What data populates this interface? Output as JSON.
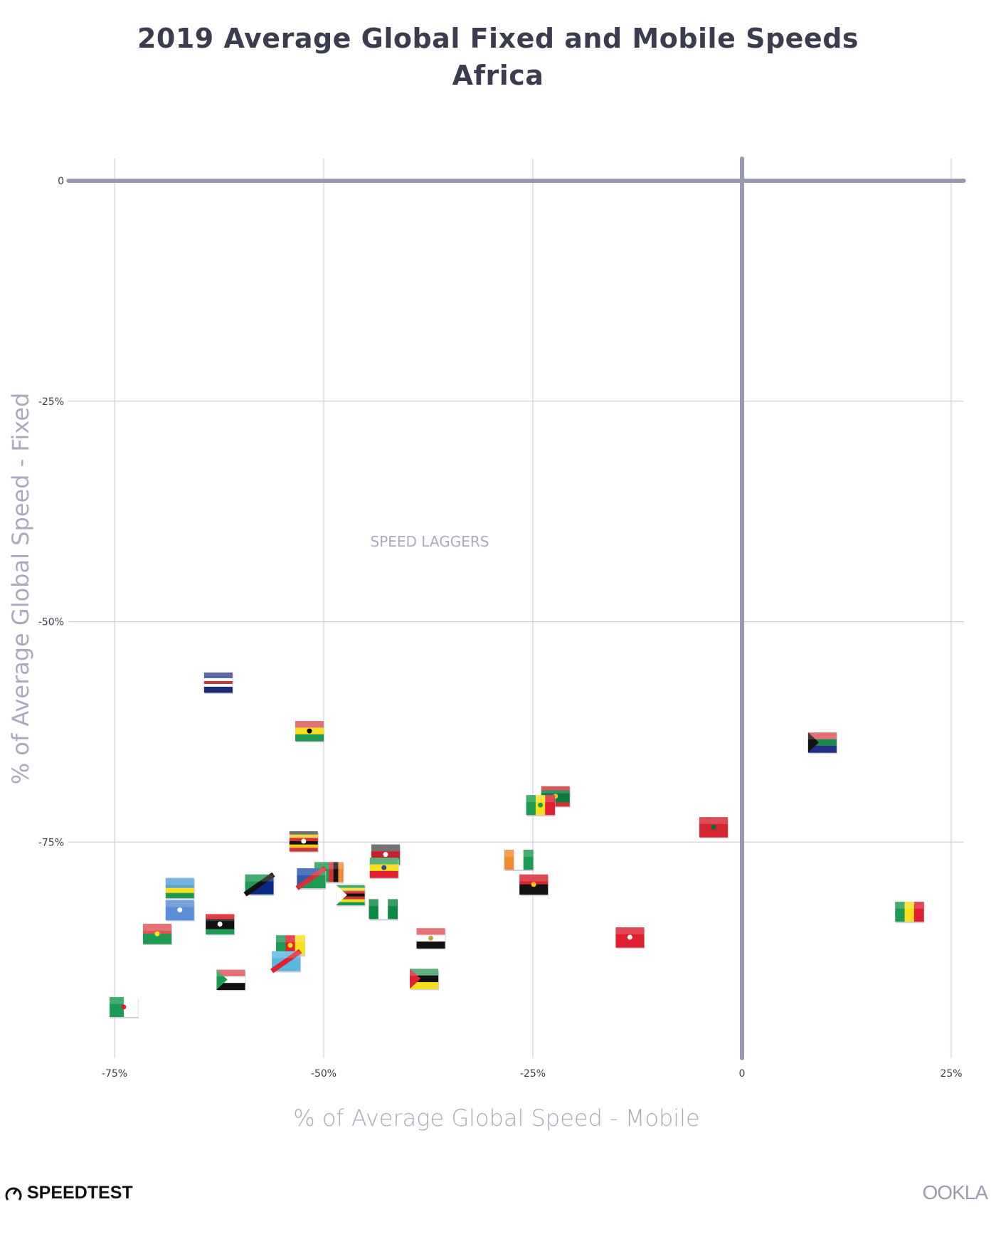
{
  "chart_data": {
    "type": "scatter",
    "title": "2019 Average Global Fixed and Mobile Speeds",
    "subtitle": "Africa",
    "xlabel": "% of Average Global Speed - Mobile",
    "ylabel": "% of Average Global Speed - Fixed",
    "xlim": [
      -80.5,
      26.5
    ],
    "ylim": [
      -99.5,
      2.5
    ],
    "x_ticks": [
      {
        "v": -75,
        "label": "-75%"
      },
      {
        "v": -50,
        "label": "-50%"
      },
      {
        "v": -25,
        "label": "-25%"
      },
      {
        "v": 0,
        "label": "0"
      },
      {
        "v": 25,
        "label": "25%"
      }
    ],
    "y_ticks": [
      {
        "v": 0,
        "label": "0"
      },
      {
        "v": -25,
        "label": "-25%"
      },
      {
        "v": -50,
        "label": "-50%"
      },
      {
        "v": -75,
        "label": "-75%"
      }
    ],
    "grid": true,
    "annotation": "SPEED LAGGERS",
    "colors": {
      "axis_zero": "#9899b0",
      "grid": "#c6c6d4",
      "label": "#a9aabd",
      "title": "#3b3c4e"
    },
    "points": [
      {
        "country": "Cape Verde",
        "x": -62.6,
        "y": -56.9,
        "flag": {
          "dir": "h",
          "colors": [
            "#3a4694",
            "#3a4694",
            "#ffffff",
            "#d0323a",
            "#ffffff",
            "#1a2a7a",
            "#1a2a7a"
          ]
        }
      },
      {
        "country": "Ghana",
        "x": -51.7,
        "y": -62.4,
        "flag": {
          "dir": "h",
          "colors": [
            "#e05158",
            "#f6e01c",
            "#1f9a53"
          ],
          "emblem": "#000000"
        }
      },
      {
        "country": "South Africa",
        "x": 9.6,
        "y": -63.7,
        "flag": {
          "dir": "h",
          "colors": [
            "#e05158",
            "#1a8a4c",
            "#232f87"
          ],
          "tri": "#111111"
        }
      },
      {
        "country": "Mauritania",
        "x": -22.3,
        "y": -69.8,
        "flag": {
          "dir": "h",
          "colors": [
            "#d0323a",
            "#0b7a3e",
            "#0b7a3e",
            "#0b7a3e",
            "#d0323a"
          ],
          "emblem": "#f0c419"
        }
      },
      {
        "country": "Senegal",
        "x": -24.1,
        "y": -70.8,
        "flag": {
          "dir": "v",
          "colors": [
            "#1f9a53",
            "#f6e01c",
            "#e02030"
          ],
          "emblem": "#1f9a53"
        }
      },
      {
        "country": "Morocco",
        "x": -3.4,
        "y": -73.3,
        "flag": {
          "dir": "h",
          "colors": [
            "#d62530"
          ],
          "emblem": "#0b6a3e"
        }
      },
      {
        "country": "Uganda",
        "x": -52.4,
        "y": -74.9,
        "flag": {
          "dir": "h",
          "colors": [
            "#555555",
            "#f6c81c",
            "#d0323a",
            "#111111",
            "#f6c81c",
            "#d0323a"
          ],
          "emblem": "#ffffff"
        }
      },
      {
        "country": "Kenya",
        "x": -42.6,
        "y": -76.4,
        "flag": {
          "dir": "h",
          "colors": [
            "#555555",
            "#c4202e",
            "#1a8a4c"
          ],
          "emblem": "#ffffff"
        }
      },
      {
        "country": "Ivory Coast",
        "x": -26.7,
        "y": -77.0,
        "flag": {
          "dir": "v",
          "colors": [
            "#f28a2e",
            "#ffffff",
            "#1f9a53"
          ]
        }
      },
      {
        "country": "Ethiopia",
        "x": -42.8,
        "y": -77.9,
        "flag": {
          "dir": "h",
          "colors": [
            "#3aa060",
            "#f6e01c",
            "#e02030"
          ],
          "emblem": "#2a4a9a"
        }
      },
      {
        "country": "Zambia",
        "x": -49.4,
        "y": -78.4,
        "flag": {
          "dir": "v",
          "colors": [
            "#1f9a53",
            "#1f9a53",
            "#1f9a53",
            "#d0323a",
            "#111111",
            "#f28a2e"
          ]
        }
      },
      {
        "country": "Namibia",
        "x": -51.5,
        "y": -79.1,
        "flag": {
          "dir": "d",
          "colors": [
            "#2a5ab0",
            "#d0323a",
            "#1f9a53"
          ]
        }
      },
      {
        "country": "Tanzania",
        "x": -57.7,
        "y": -79.8,
        "flag": {
          "dir": "d",
          "colors": [
            "#1f9a53",
            "#111111",
            "#0a2a8a"
          ]
        }
      },
      {
        "country": "Angola",
        "x": -24.9,
        "y": -79.8,
        "flag": {
          "dir": "h",
          "colors": [
            "#d62530",
            "#111111"
          ],
          "emblem": "#f0c419"
        }
      },
      {
        "country": "Rwanda",
        "x": -67.2,
        "y": -80.2,
        "flag": {
          "dir": "h",
          "colors": [
            "#5aa0d8",
            "#5aa0d8",
            "#f6e01c",
            "#1f9a53"
          ]
        }
      },
      {
        "country": "Zimbabwe",
        "x": -46.8,
        "y": -81.0,
        "flag": {
          "dir": "h",
          "colors": [
            "#1f9a53",
            "#f6e01c",
            "#d0323a",
            "#111111",
            "#d0323a",
            "#f6e01c",
            "#1f9a53"
          ],
          "tri": "#ffffff"
        }
      },
      {
        "country": "Nigeria",
        "x": -42.9,
        "y": -82.6,
        "flag": {
          "dir": "v",
          "colors": [
            "#0b8a44",
            "#ffffff",
            "#0b8a44"
          ]
        }
      },
      {
        "country": "Somalia",
        "x": -67.2,
        "y": -82.7,
        "flag": {
          "dir": "h",
          "colors": [
            "#5a8ed8"
          ],
          "emblem": "#ffffff"
        }
      },
      {
        "country": "Mali",
        "x": 20.0,
        "y": -82.9,
        "flag": {
          "dir": "v",
          "colors": [
            "#1f9a53",
            "#f6e01c",
            "#e02030"
          ]
        }
      },
      {
        "country": "Libya",
        "x": -62.4,
        "y": -84.3,
        "flag": {
          "dir": "h",
          "colors": [
            "#e0101a",
            "#111111",
            "#111111",
            "#1f9a53"
          ],
          "emblem": "#ffffff"
        }
      },
      {
        "country": "Burkina Faso",
        "x": -69.9,
        "y": -85.4,
        "flag": {
          "dir": "h",
          "colors": [
            "#e05158",
            "#1f9a53"
          ],
          "emblem": "#f6e01c"
        }
      },
      {
        "country": "Egypt",
        "x": -37.2,
        "y": -85.9,
        "flag": {
          "dir": "h",
          "colors": [
            "#e05158",
            "#ffffff",
            "#111111"
          ],
          "emblem": "#c0a040"
        }
      },
      {
        "country": "Tunisia",
        "x": -13.4,
        "y": -85.8,
        "flag": {
          "dir": "h",
          "colors": [
            "#e02030"
          ],
          "emblem": "#ffffff"
        }
      },
      {
        "country": "Cameroon",
        "x": -54.0,
        "y": -86.7,
        "flag": {
          "dir": "v",
          "colors": [
            "#1f9a53",
            "#e02030",
            "#f6e01c"
          ],
          "emblem": "#f6e01c"
        }
      },
      {
        "country": "DR Congo",
        "x": -54.5,
        "y": -88.5,
        "flag": {
          "dir": "d",
          "colors": [
            "#5ab8e0",
            "#e02030",
            "#5ab8e0"
          ]
        }
      },
      {
        "country": "Mozambique",
        "x": -38.0,
        "y": -90.5,
        "flag": {
          "dir": "h",
          "colors": [
            "#3aa060",
            "#111111",
            "#f6e01c"
          ],
          "tri": "#e02030"
        }
      },
      {
        "country": "Sudan",
        "x": -61.1,
        "y": -90.6,
        "flag": {
          "dir": "h",
          "colors": [
            "#e05158",
            "#ffffff",
            "#111111"
          ],
          "tri": "#1f9a53"
        }
      },
      {
        "country": "Algeria",
        "x": -73.9,
        "y": -93.7,
        "flag": {
          "dir": "v",
          "colors": [
            "#1a9a55",
            "#ffffff"
          ],
          "emblem": "#e02030"
        }
      }
    ]
  },
  "branding": {
    "left_logo": "SPEEDTEST",
    "right_logo": "OOKLA"
  }
}
